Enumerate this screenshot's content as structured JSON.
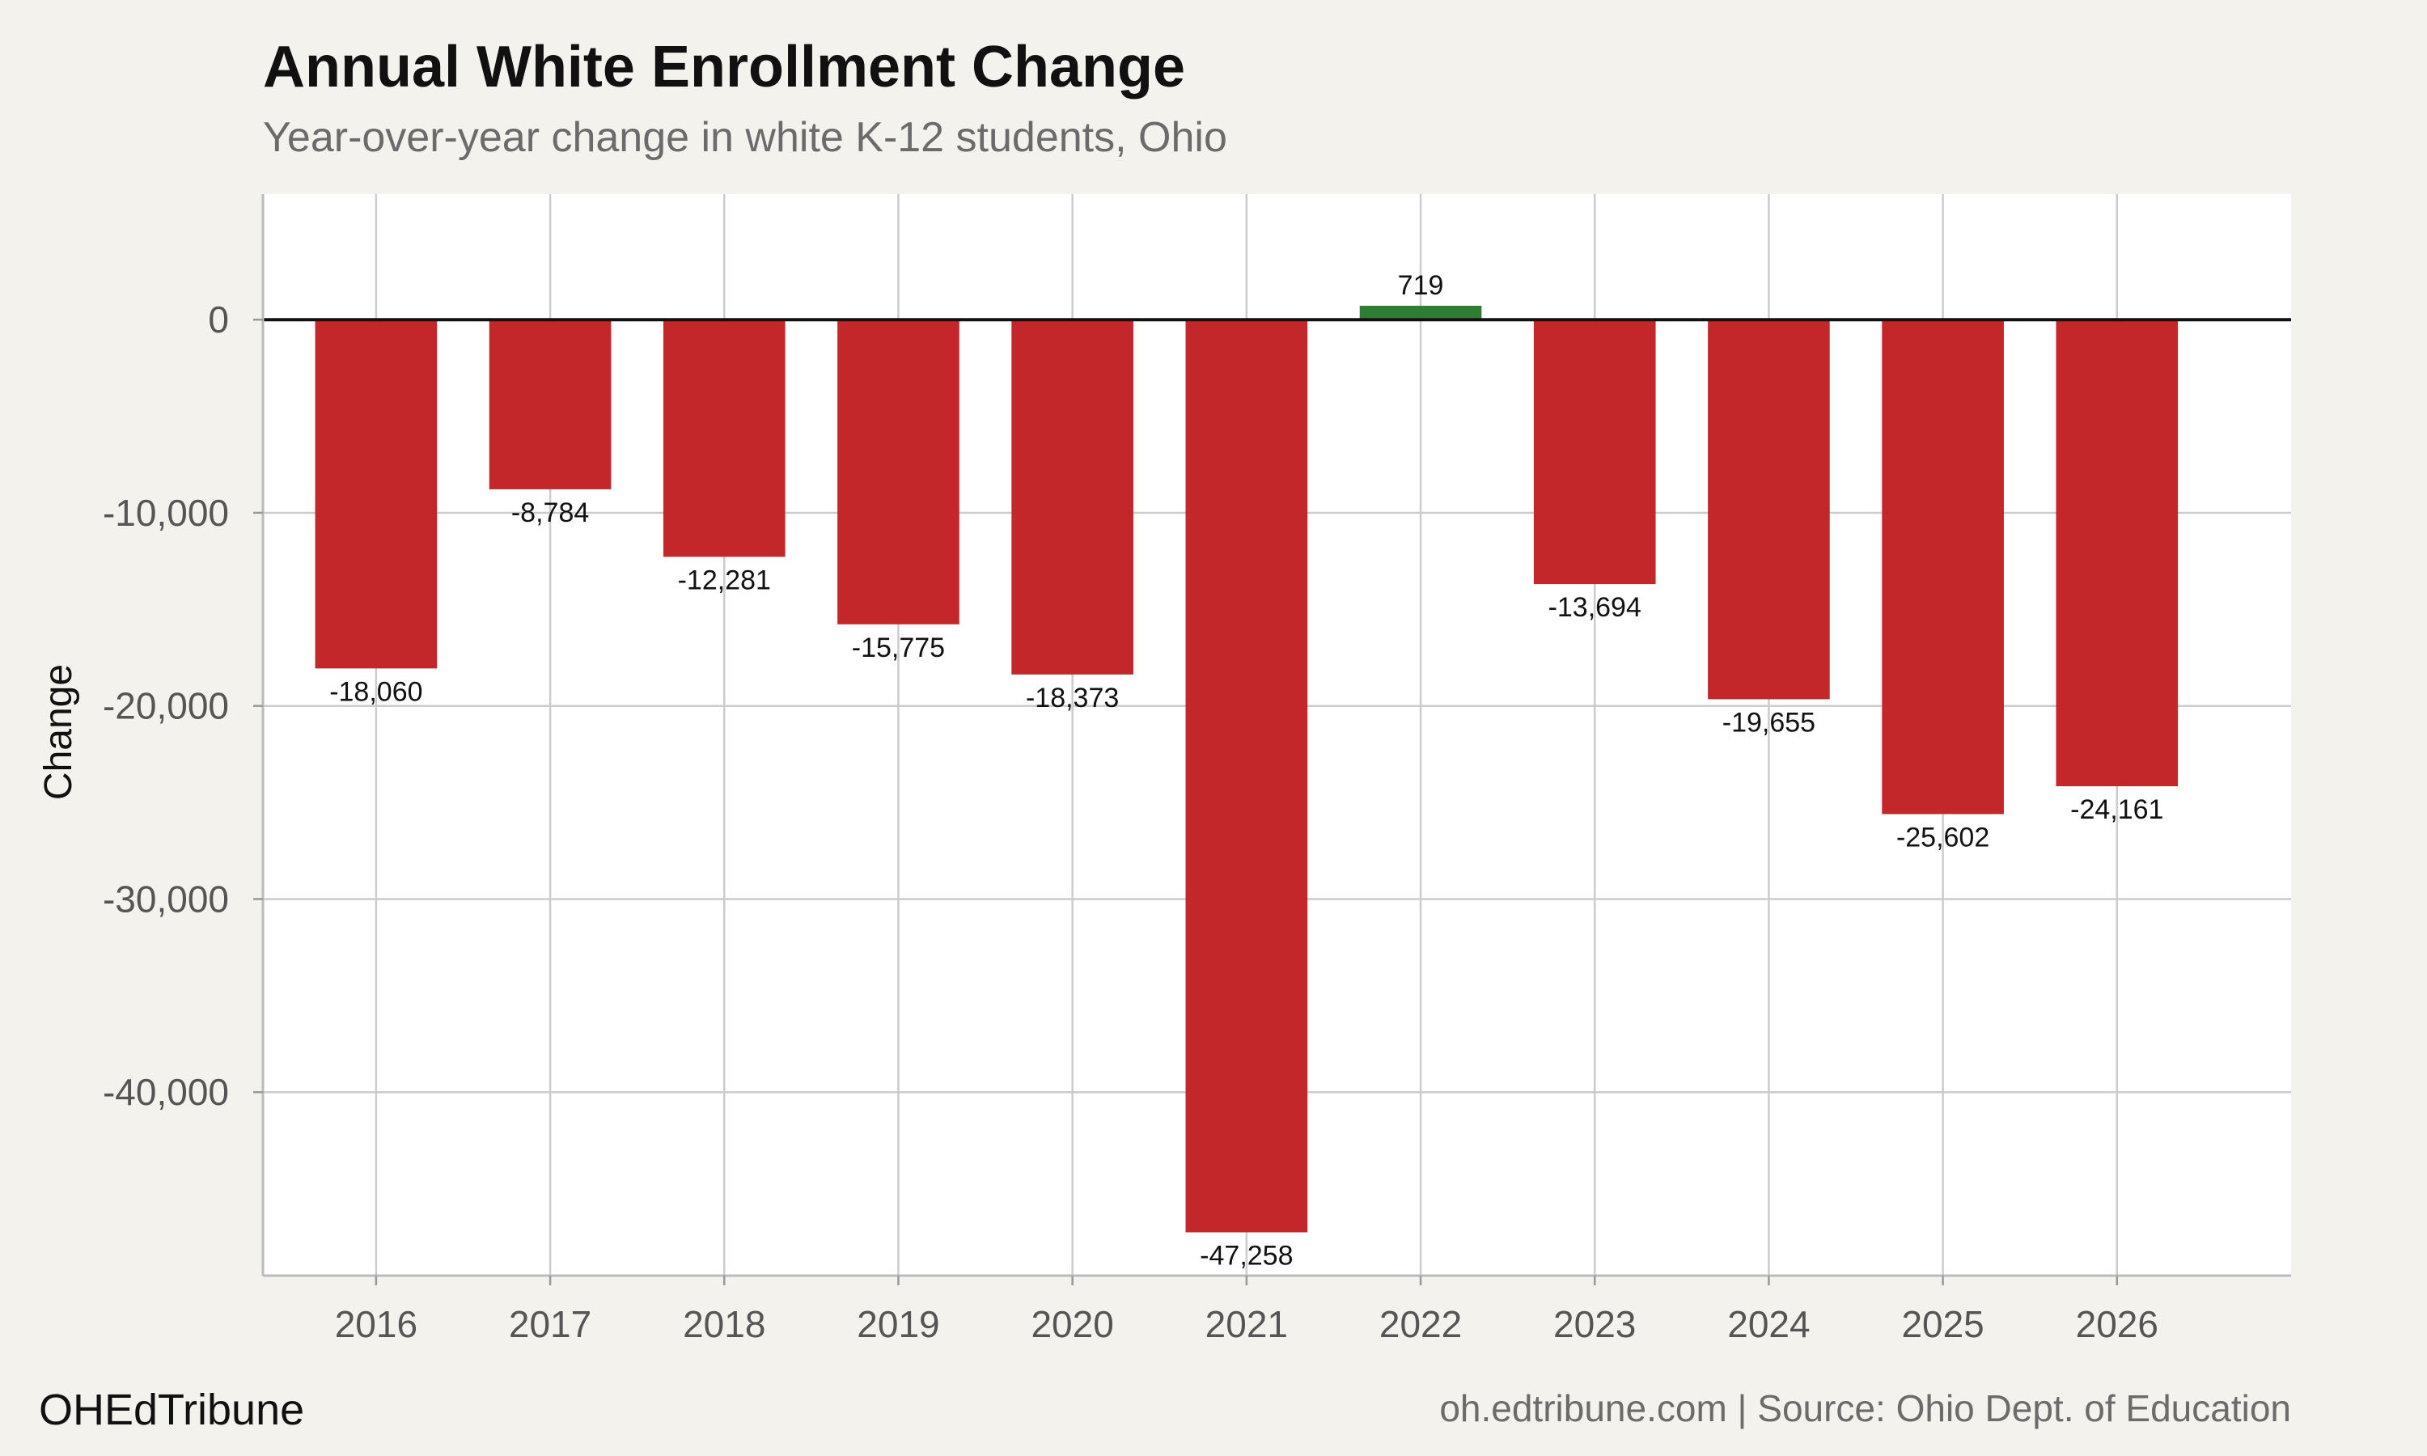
{
  "chart_data": {
    "type": "bar",
    "title": "Annual White Enrollment Change",
    "subtitle": "Year-over-year change in white K-12 students, Ohio",
    "xlabel": "",
    "ylabel": "Change",
    "categories": [
      "2016",
      "2017",
      "2018",
      "2019",
      "2020",
      "2021",
      "2022",
      "2023",
      "2024",
      "2025",
      "2026"
    ],
    "values": [
      -18060,
      -8784,
      -12281,
      -15775,
      -18373,
      -47258,
      719,
      -13694,
      -19655,
      -25602,
      -24161
    ],
    "data_labels": [
      "-18,060",
      "-8,784",
      "-12,281",
      "-15,775",
      "-18,373",
      "-47,258",
      "719",
      "-13,694",
      "-19,655",
      "-25,602",
      "-24,161"
    ],
    "ylim": [
      -49500,
      6500
    ],
    "y_ticks": [
      0,
      -10000,
      -20000,
      -30000,
      -40000
    ],
    "y_tick_labels": [
      "0",
      "-10,000",
      "-20,000",
      "-30,000",
      "-40,000"
    ],
    "grid": true,
    "colors": {
      "negative": "#c4272a",
      "positive": "#2e7d32",
      "zero_line": "#111111",
      "grid": "#cccccc",
      "panel": "#ffffff",
      "background": "#f4f2ed"
    }
  },
  "footer": {
    "brand": "OHEdTribune",
    "source": "oh.edtribune.com | Source: Ohio Dept. of Education"
  }
}
